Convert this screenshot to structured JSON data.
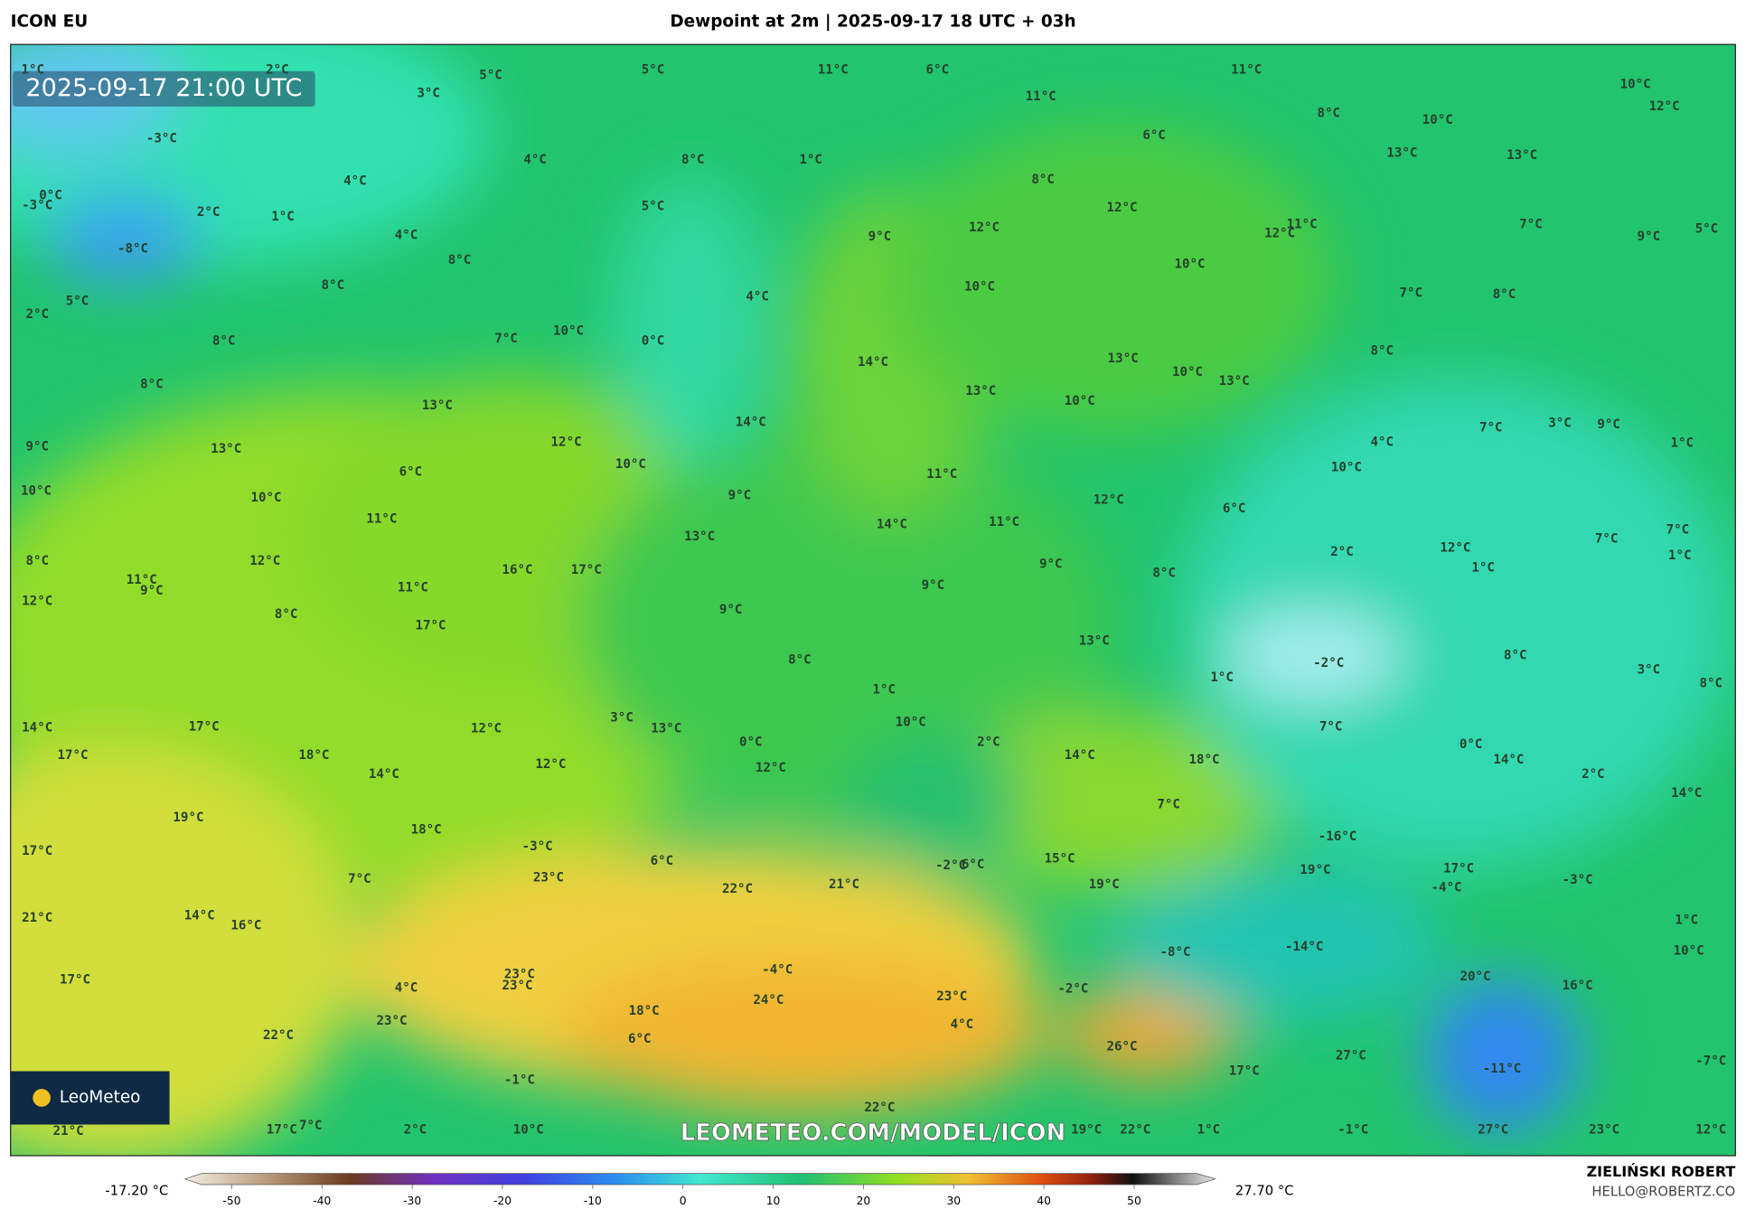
{
  "header": {
    "model": "ICON EU",
    "title": "Dewpoint at 2m | 2025-09-17 18 UTC + 03h"
  },
  "valid_time": "2025-09-17 21:00 UTC",
  "map_labels": [
    "1°C",
    "2°C",
    "5°C",
    "3°C",
    "5°C",
    "11°C",
    "6°C",
    "11°C",
    "10°C",
    "12°C",
    "11°C",
    "8°C",
    "10°C",
    "6°C",
    "-3°C",
    "4°C",
    "8°C",
    "1°C",
    "13°C",
    "13°C",
    "4°C",
    "8°C",
    "0°C",
    "-3°C",
    "5°C",
    "12°C",
    "2°C",
    "1°C",
    "11°C",
    "12°C",
    "12°C",
    "7°C",
    "9°C",
    "5°C",
    "4°C",
    "9°C",
    "-8°C",
    "8°C",
    "10°C",
    "8°C",
    "10°C",
    "4°C",
    "7°C",
    "8°C",
    "5°C",
    "2°C",
    "10°C",
    "7°C",
    "8°C",
    "0°C",
    "8°C",
    "13°C",
    "14°C",
    "10°C",
    "13°C",
    "8°C",
    "13°C",
    "10°C",
    "13°C",
    "14°C",
    "7°C",
    "3°C",
    "9°C",
    "9°C",
    "13°C",
    "12°C",
    "4°C",
    "1°C",
    "10°C",
    "10°C",
    "6°C",
    "11°C",
    "10°C",
    "10°C",
    "9°C",
    "12°C",
    "6°C",
    "11°C",
    "14°C",
    "11°C",
    "7°C",
    "13°C",
    "7°C",
    "2°C",
    "12°C",
    "1°C",
    "8°C",
    "12°C",
    "16°C",
    "17°C",
    "9°C",
    "1°C",
    "8°C",
    "11°C",
    "9°C",
    "11°C",
    "9°C",
    "12°C",
    "8°C",
    "9°C",
    "17°C",
    "13°C",
    "8°C",
    "-2°C",
    "8°C",
    "3°C",
    "1°C",
    "8°C",
    "1°C",
    "3°C",
    "13°C",
    "10°C",
    "7°C",
    "14°C",
    "17°C",
    "12°C",
    "0°C",
    "2°C",
    "0°C",
    "17°C",
    "18°C",
    "14°C",
    "18°C",
    "14°C",
    "12°C",
    "12°C",
    "14°C",
    "2°C",
    "14°C",
    "7°C",
    "19°C",
    "18°C",
    "-16°C",
    "-3°C",
    "17°C",
    "6°C",
    "-2°C",
    "6°C",
    "15°C",
    "19°C",
    "17°C",
    "23°C",
    "-3°C",
    "7°C",
    "21°C",
    "19°C",
    "22°C",
    "-4°C",
    "21°C",
    "14°C",
    "16°C",
    "1°C",
    "-14°C",
    "-8°C",
    "10°C",
    "23°C",
    "-4°C",
    "17°C",
    "20°C",
    "16°C",
    "23°C",
    "4°C",
    "-2°C",
    "24°C",
    "23°C",
    "18°C",
    "23°C",
    "4°C",
    "26°C",
    "22°C",
    "6°C",
    "27°C",
    "-7°C",
    "17°C",
    "-11°C",
    "-1°C",
    "22°C",
    "21°C",
    "17°C",
    "7°C",
    "2°C",
    "10°C",
    "19°C",
    "22°C",
    "1°C",
    "-1°C",
    "27°C",
    "23°C",
    "12°C"
  ],
  "watermark": "LEOMETEO.COM/MODEL/ICON",
  "logo": "LeoMeteo",
  "colorbar": {
    "min_label": "-17.20 °C",
    "max_label": "27.70 °C",
    "ticks": [
      -50,
      -40,
      -30,
      -20,
      -10,
      0,
      10,
      20,
      30,
      40,
      50
    ]
  },
  "credit": {
    "author": "ZIELIŃSKI ROBERT",
    "email": "HELLO@ROBERTZ.CO"
  }
}
